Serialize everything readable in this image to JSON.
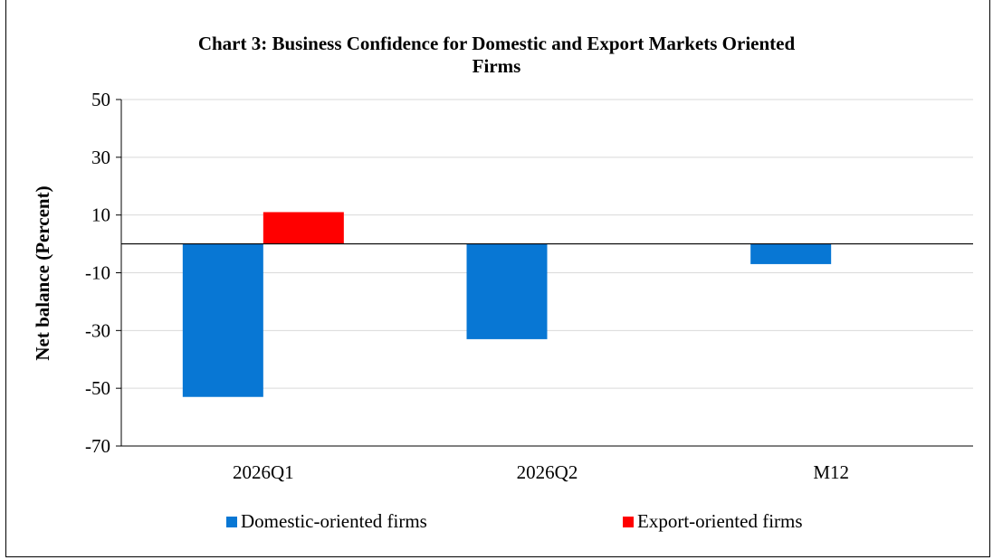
{
  "chart_data": {
    "type": "bar",
    "title_lines": [
      "Chart 3: Business Confidence for Domestic and Export Markets Oriented",
      "Firms"
    ],
    "ylabel": "Net balance (Percent)",
    "xlabel": "",
    "categories": [
      "2026Q1",
      "2026Q2",
      "M12"
    ],
    "series": [
      {
        "name": "Domestic-oriented firms",
        "color": "#0877d4",
        "values": [
          -53,
          -33,
          -7
        ]
      },
      {
        "name": "Export-oriented firms",
        "color": "#ff0000",
        "values": [
          11,
          null,
          null
        ]
      }
    ],
    "ylim": [
      -70,
      50
    ],
    "yticks": [
      "50",
      "30",
      "10",
      "-10",
      "-30",
      "-50",
      "-70"
    ],
    "grid": true,
    "legend_position": "bottom"
  }
}
